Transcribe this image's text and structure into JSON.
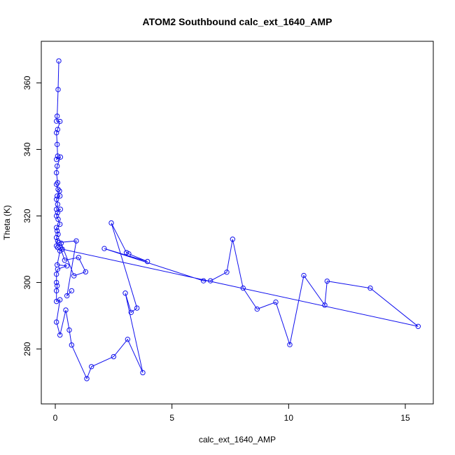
{
  "chart_data": {
    "type": "line",
    "title": "ATOM2 Southbound calc_ext_1640_AMP",
    "xlabel": "calc_ext_1640_AMP",
    "ylabel": "Theta (K)",
    "xlim": [
      -0.6,
      16.2
    ],
    "ylim": [
      263.5,
      372.5
    ],
    "x_ticks": [
      0,
      5,
      10,
      15
    ],
    "y_ticks": [
      280,
      300,
      320,
      340,
      360
    ],
    "grid": false,
    "legend": "none",
    "marker": "open-circle",
    "color": "#1010ee",
    "series": [
      {
        "points": [
          [
            0.15,
            366.6
          ],
          [
            0.12,
            358.0
          ],
          [
            0.08,
            350.0
          ],
          [
            0.05,
            348.5
          ],
          [
            0.2,
            348.4
          ],
          [
            0.1,
            346.0
          ],
          [
            0.05,
            345.0
          ],
          [
            0.08,
            341.5
          ],
          [
            0.1,
            338.0
          ],
          [
            0.05,
            337.0
          ],
          [
            0.22,
            337.7
          ],
          [
            0.08,
            335.0
          ],
          [
            0.05,
            333.0
          ],
          [
            0.1,
            330.0
          ],
          [
            0.05,
            329.5
          ],
          [
            0.12,
            328.0
          ],
          [
            0.18,
            327.5
          ],
          [
            0.08,
            326.0
          ],
          [
            0.2,
            326.0
          ],
          [
            0.05,
            325.0
          ],
          [
            0.1,
            323.5
          ],
          [
            0.05,
            322.0
          ],
          [
            0.22,
            322.0
          ],
          [
            0.1,
            321.0
          ],
          [
            0.05,
            320.0
          ],
          [
            0.12,
            319.0
          ],
          [
            0.2,
            317.5
          ],
          [
            0.05,
            316.5
          ],
          [
            0.08,
            315.5
          ],
          [
            0.12,
            314.5
          ],
          [
            0.05,
            313.5
          ],
          [
            0.1,
            312.5
          ],
          [
            0.05,
            311.0
          ],
          [
            0.1,
            310.5
          ],
          [
            0.2,
            309.5
          ],
          [
            0.08,
            305.3
          ],
          [
            0.5,
            305.0
          ],
          [
            0.1,
            304.0
          ],
          [
            0.05,
            302.5
          ],
          [
            0.05,
            300.0
          ],
          [
            0.08,
            299.0
          ],
          [
            0.05,
            297.5
          ],
          [
            0.05,
            294.3
          ],
          [
            0.2,
            294.8
          ],
          [
            0.05,
            288.1
          ],
          [
            0.2,
            284.2
          ],
          [
            0.45,
            291.7
          ],
          [
            0.6,
            285.7
          ],
          [
            0.7,
            281.2
          ],
          [
            1.35,
            271.1
          ],
          [
            1.55,
            274.7
          ],
          [
            2.5,
            277.7
          ],
          [
            3.1,
            282.9
          ],
          [
            3.75,
            272.9
          ],
          [
            3.0,
            296.8
          ],
          [
            3.25,
            291.0
          ],
          [
            3.5,
            292.3
          ],
          [
            2.4,
            317.9
          ],
          [
            3.05,
            309.0
          ],
          [
            3.15,
            308.6
          ],
          [
            3.95,
            306.3
          ],
          [
            2.1,
            310.2
          ],
          [
            6.35,
            300.5
          ],
          [
            6.65,
            300.5
          ],
          [
            7.35,
            303.1
          ],
          [
            7.6,
            313.0
          ],
          [
            8.05,
            298.3
          ],
          [
            8.65,
            292.0
          ],
          [
            9.45,
            294.1
          ],
          [
            10.05,
            281.3
          ],
          [
            10.65,
            302.1
          ],
          [
            11.55,
            293.2
          ],
          [
            11.65,
            300.4
          ],
          [
            13.5,
            298.3
          ],
          [
            15.55,
            286.8
          ],
          [
            0.3,
            310.0
          ],
          [
            0.25,
            311.8
          ],
          [
            0.8,
            302.0
          ],
          [
            1.3,
            303.2
          ],
          [
            1.0,
            307.5
          ],
          [
            0.4,
            306.7
          ],
          [
            0.15,
            312.0
          ],
          [
            0.9,
            312.5
          ],
          [
            0.5,
            296.0
          ],
          [
            0.7,
            297.5
          ]
        ]
      }
    ]
  }
}
